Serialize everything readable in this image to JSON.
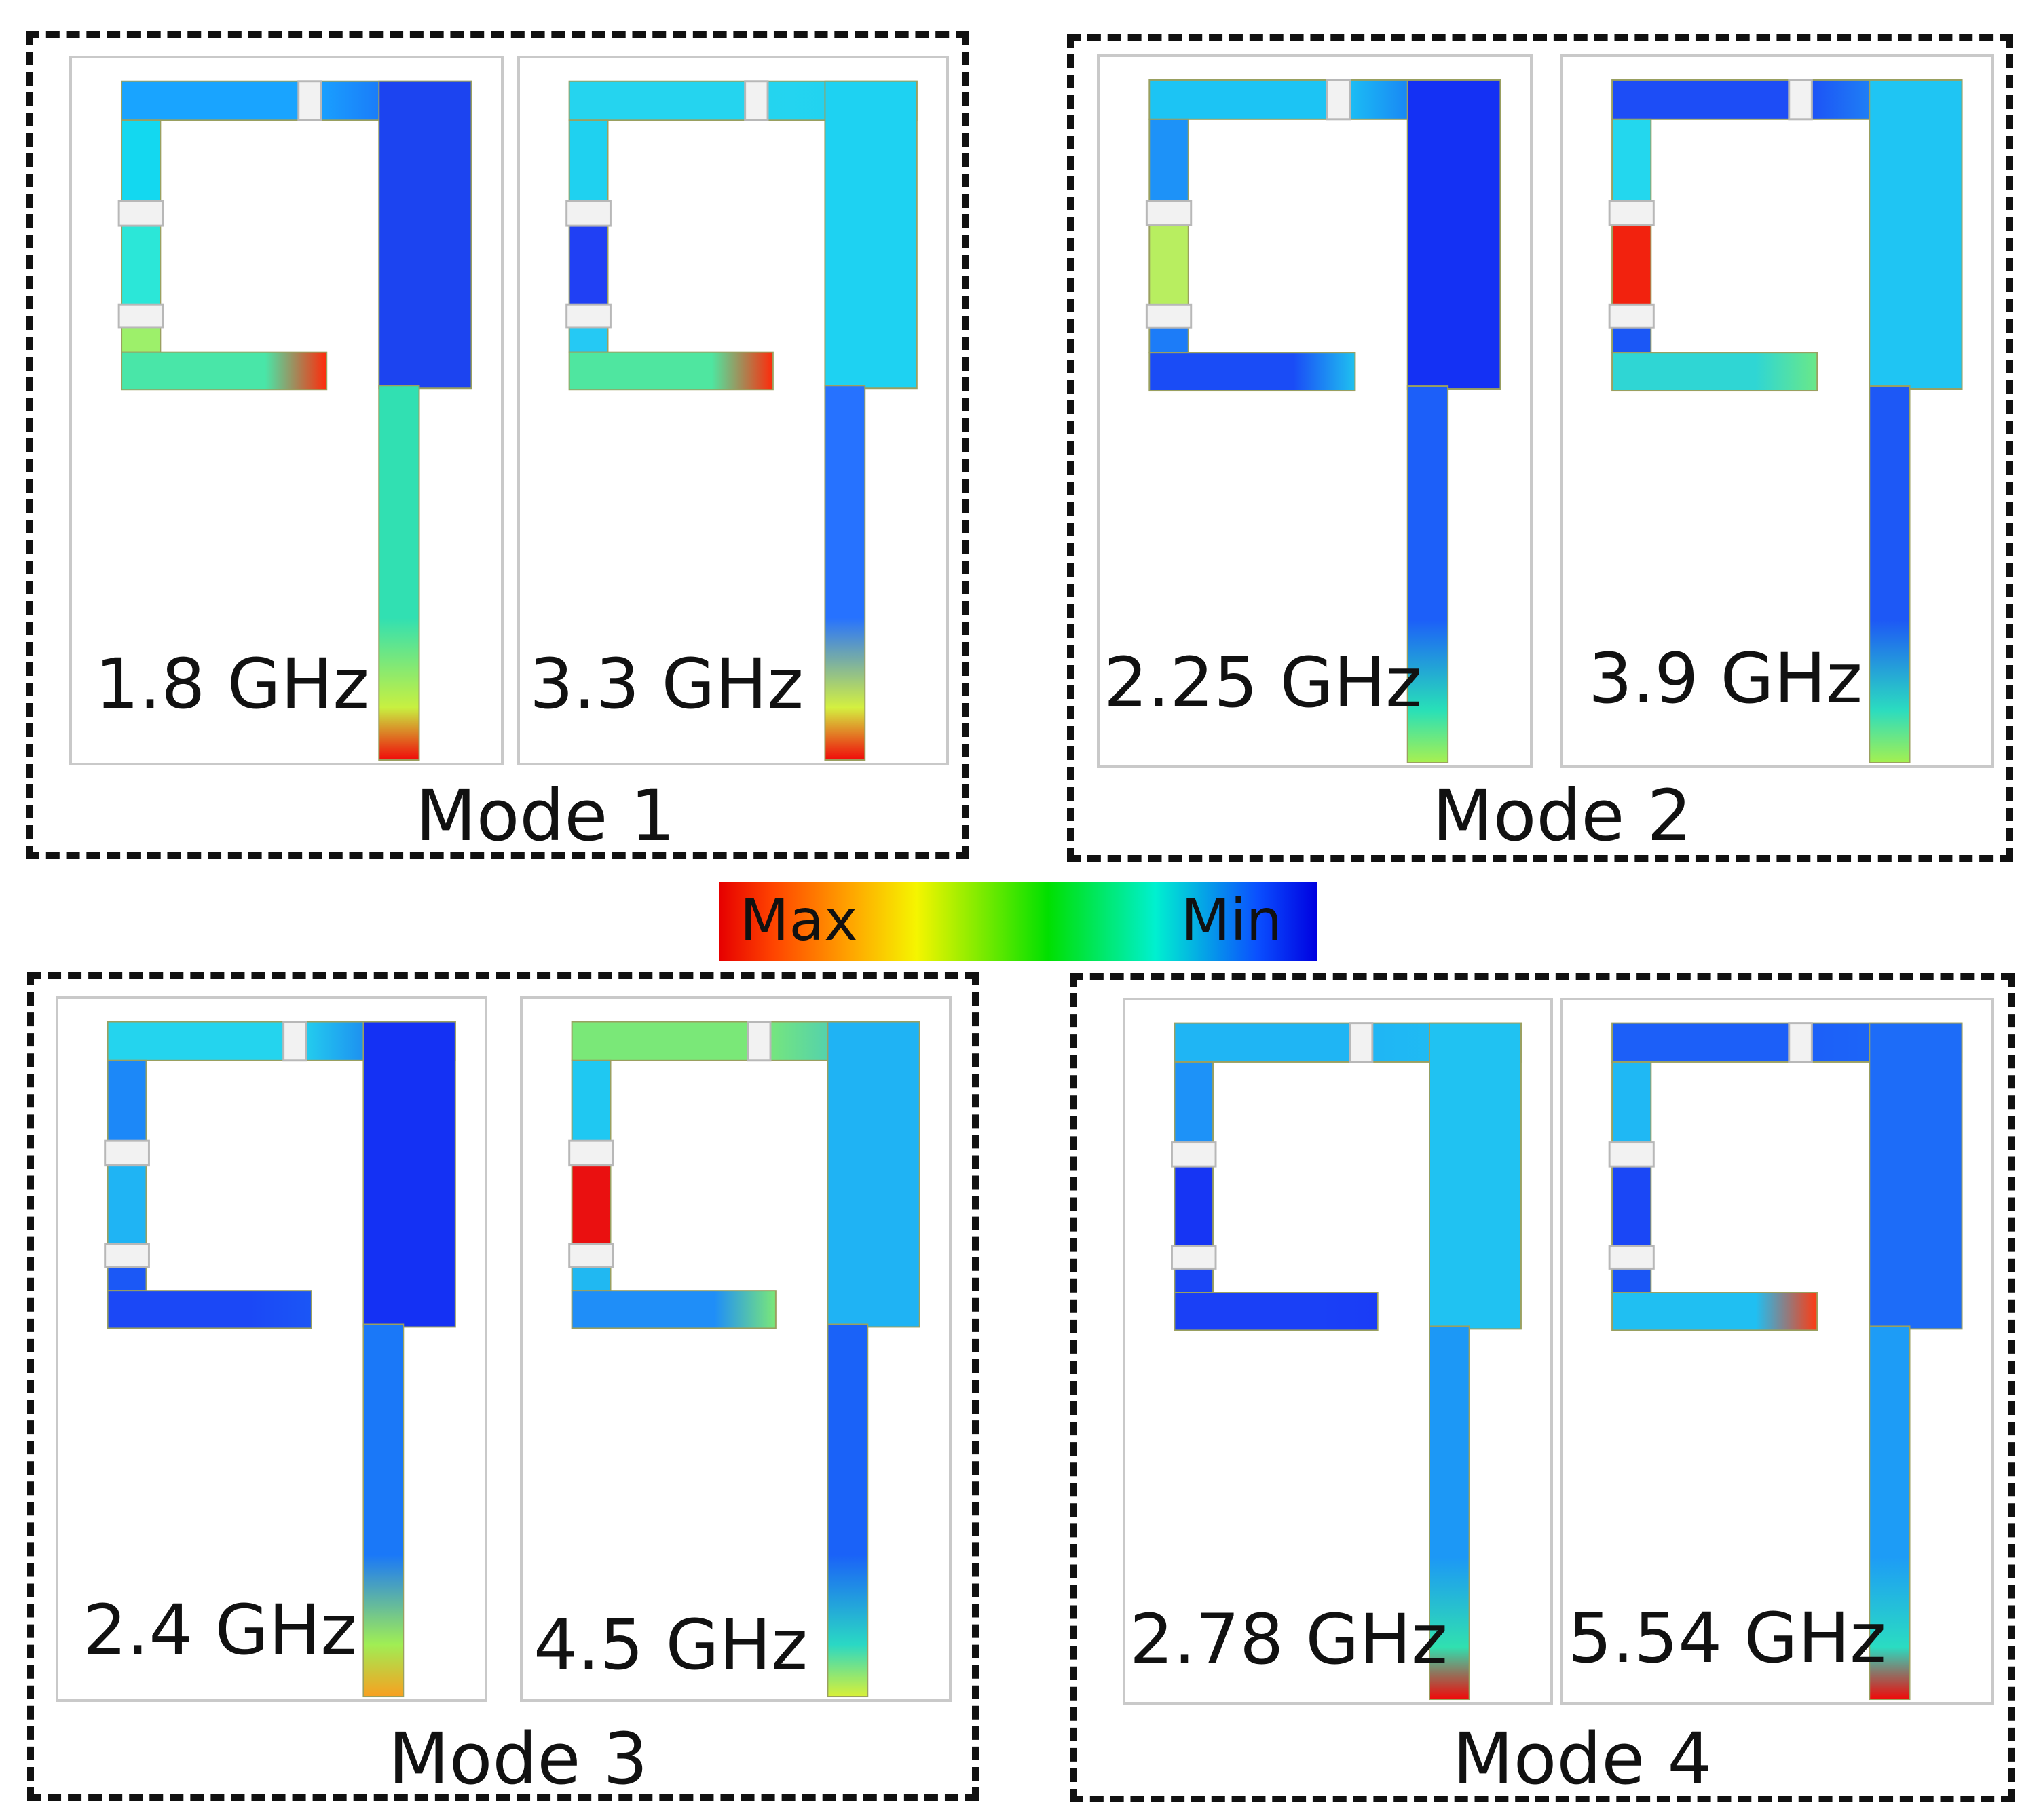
{
  "colors": {
    "max": "#e60000",
    "min": "#0000e0",
    "outline": "#111111"
  },
  "colorbar": {
    "max_label": "Max",
    "min_label": "Min"
  },
  "modes": [
    {
      "label": "Mode 1",
      "panels": [
        {
          "freq": "1.8 GHz",
          "field": {
            "top": "#19a4ff",
            "corner": "#1c44f0",
            "fed": "#13d8f0",
            "c1": "#2be7d8",
            "c2": "#9df06a",
            "arm": "#49e6a8",
            "armtip": "#ff2a0a",
            "stem": "#31e0b2",
            "stemlow": "#c8f040",
            "base": "#f00a0a"
          }
        },
        {
          "freq": "3.3 GHz",
          "field": {
            "top": "#25d4ef",
            "corner": "#1ed2f2",
            "fed": "#1fd1f0",
            "c1": "#2040f4",
            "c2": "#25c9f4",
            "arm": "#4fe6a0",
            "armtip": "#ff2a0a",
            "stem": "#2672ff",
            "stemlow": "#d4f040",
            "base": "#f00a0a"
          }
        }
      ]
    },
    {
      "label": "Mode 2",
      "panels": [
        {
          "freq": "2.25 GHz",
          "field": {
            "top": "#1cc4f4",
            "corner": "#1431f4",
            "fed": "#1d92f8",
            "c1": "#b8ee60",
            "c2": "#1c7cf8",
            "arm": "#1a4cf6",
            "armtip": "#1fc1f0",
            "stem": "#1c5ff9",
            "stemlow": "#28e0b8",
            "base": "#a8f050"
          }
        },
        {
          "freq": "3.9 GHz",
          "field": {
            "top": "#1d4df6",
            "corner": "#1fc5f3",
            "fed": "#23d7ee",
            "c1": "#f2220e",
            "c2": "#1b57f6",
            "arm": "#2fd6d4",
            "armtip": "#6ae888",
            "stem": "#1d58f6",
            "stemlow": "#2bdcc0",
            "base": "#a4f050"
          }
        }
      ]
    },
    {
      "label": "Mode 3",
      "panels": [
        {
          "freq": "2.4 GHz",
          "field": {
            "top": "#24d4ee",
            "corner": "#1431f4",
            "fed": "#1c88f8",
            "c1": "#1fb4f4",
            "c2": "#1b58f6",
            "arm": "#1b48f6",
            "armtip": "#1b56f6",
            "stem": "#1a78f8",
            "stemlow": "#a0ee54",
            "base": "#f8a020"
          }
        },
        {
          "freq": "4.5 GHz",
          "field": {
            "top": "#7ae878",
            "corner": "#1fb3f4",
            "fed": "#1fc8f2",
            "c1": "#ea1010",
            "c2": "#20b8f2",
            "arm": "#1f8ef8",
            "armtip": "#7ae878",
            "stem": "#1a62f8",
            "stemlow": "#2ad8c4",
            "base": "#d8f038"
          }
        }
      ]
    },
    {
      "label": "Mode 4",
      "panels": [
        {
          "freq": "2.78 GHz",
          "field": {
            "top": "#1fb5f4",
            "corner": "#20c2f2",
            "fed": "#1d92f8",
            "c1": "#1635f4",
            "c2": "#1a44f6",
            "arm": "#1a40f6",
            "armtip": "#1a3cf6",
            "stem": "#1c98f6",
            "stemlow": "#30e0b0",
            "base": "#f00a0a"
          }
        },
        {
          "freq": "5.54 GHz",
          "field": {
            "top": "#1c5ff8",
            "corner": "#1d6cf8",
            "fed": "#1fb8f4",
            "c1": "#1a47f6",
            "c2": "#1a55f6",
            "arm": "#20bff2",
            "armtip": "#ff3a10",
            "stem": "#1d9cf6",
            "stemlow": "#2adcc2",
            "base": "#f00a0a"
          }
        }
      ]
    }
  ]
}
